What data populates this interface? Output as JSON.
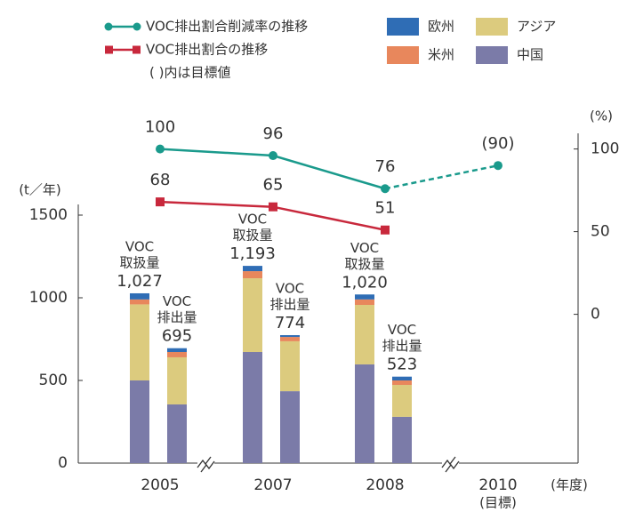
{
  "chart_data": {
    "type": "bar_line",
    "categories": [
      "2005",
      "2007",
      "2008",
      "2010"
    ],
    "category_notes": [
      null,
      null,
      null,
      "(目標)"
    ],
    "x_label": "(年度)",
    "y_label": "(t／年)",
    "y2_label": "(%)",
    "ylim": [
      0,
      2500
    ],
    "yticks": [
      0,
      500,
      1000,
      1500
    ],
    "y2lim": [
      -90,
      160
    ],
    "y2ticks": [
      0,
      50,
      100
    ],
    "stack_series": [
      {
        "name": "中国",
        "color": "#7b7ba8"
      },
      {
        "name": "アジア",
        "color": "#dccb7e"
      },
      {
        "name": "米州",
        "color": "#e8875c"
      },
      {
        "name": "欧州",
        "color": "#2f6db5"
      }
    ],
    "bar_groups": [
      {
        "label": [
          "VOC",
          "取扱量"
        ],
        "total_labels": [
          "1,027",
          "1,193",
          "1,020",
          null
        ],
        "values": [
          [
            500,
            460,
            30,
            37
          ],
          [
            672,
            446,
            43,
            32
          ],
          [
            597,
            360,
            33,
            30
          ],
          null
        ]
      },
      {
        "label": [
          "VOC",
          "排出量"
        ],
        "total_labels": [
          "695",
          "774",
          "523",
          null
        ],
        "values": [
          [
            355,
            285,
            32,
            23
          ],
          [
            435,
            302,
            26,
            11
          ],
          [
            280,
            193,
            27,
            23
          ],
          null
        ]
      }
    ],
    "series": [
      {
        "name": "VOC排出割合削減率の推移",
        "color": "#1a9a8c",
        "axis": "y2",
        "dashed_last": true,
        "values": [
          100,
          96,
          76,
          90
        ],
        "value_labels": [
          "100",
          "96",
          "76",
          "(90)"
        ]
      },
      {
        "name": "VOC排出割合の推移",
        "color": "#c8283c",
        "axis": "y2",
        "values": [
          68,
          65,
          51,
          null
        ]
      }
    ],
    "note": "( )内は目標値"
  }
}
